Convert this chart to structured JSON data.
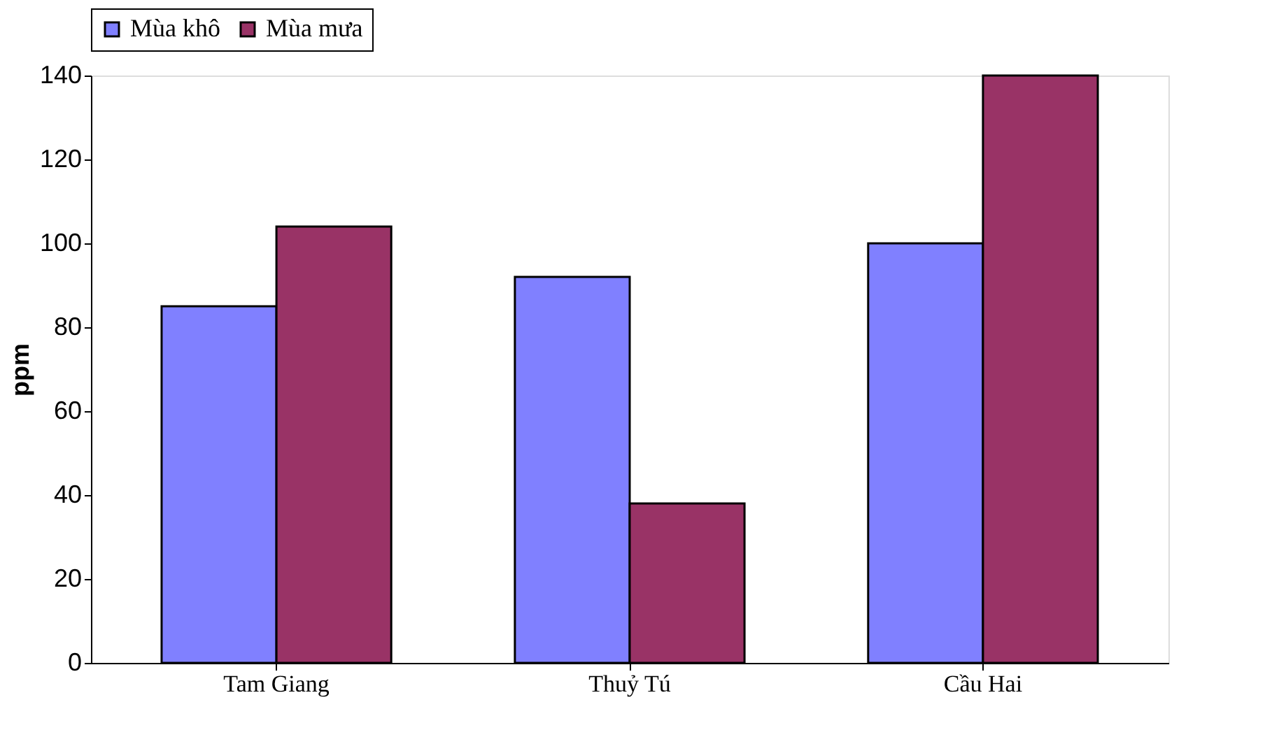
{
  "chart_data": {
    "type": "bar",
    "categories": [
      "Tam Giang",
      "Thuỷ Tú",
      "Cầu Hai"
    ],
    "ylabel": "ppm",
    "ylim": [
      0,
      140
    ],
    "yticks": [
      0,
      20,
      40,
      60,
      80,
      100,
      120,
      140
    ],
    "grid": false,
    "legend": "top",
    "series": [
      {
        "name": "Mùa khô",
        "color": "#8080ff",
        "values": [
          85,
          92,
          100
        ]
      },
      {
        "name": "Mùa mưa",
        "color": "#993366",
        "values": [
          104,
          38,
          140
        ]
      }
    ]
  }
}
